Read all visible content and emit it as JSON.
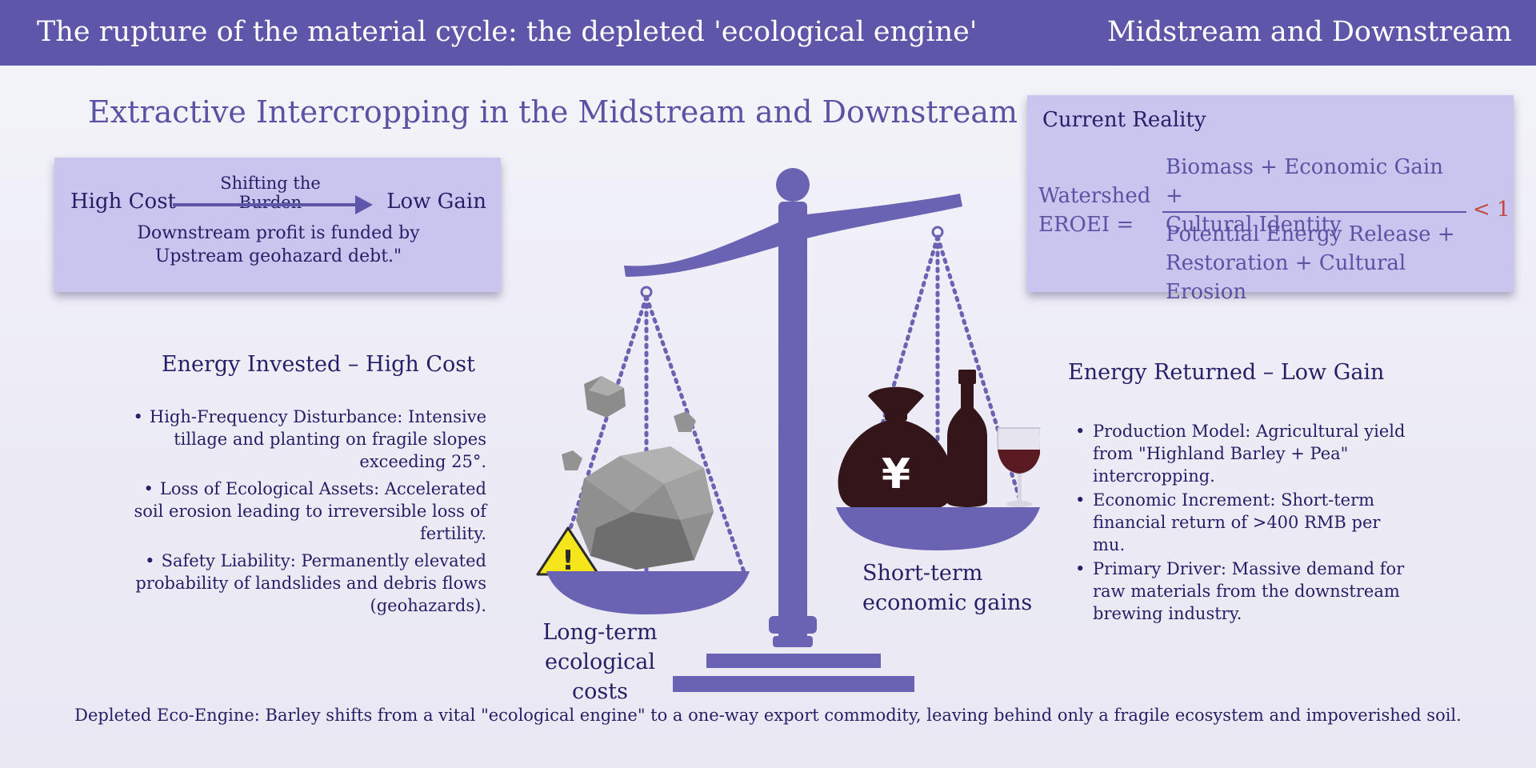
{
  "header": {
    "title": "The rupture of the material cycle: the depleted 'ecological engine'",
    "section": "Midstream and Downstream"
  },
  "main_title": "Extractive Intercropping in the Midstream and Downstream",
  "burden": {
    "high": "High Cost",
    "shift": "Shifting the Burden",
    "low": "Low Gain",
    "note_line1": "Downstream profit is funded by",
    "note_line2": "Upstream geohazard debt.\""
  },
  "eroei": {
    "heading": "Current Reality",
    "lhs_line1": "Watershed",
    "lhs_line2": "EROEI =",
    "numerator_line1": "Biomass + Economic Gain +",
    "numerator_line2": "Cultural Identity",
    "denominator_line1": "Potential Energy Release +",
    "denominator_line2": "Restoration + Cultural Erosion",
    "comparison": "< 1"
  },
  "invested": {
    "heading": "Energy Invested – High Cost",
    "items": [
      "High-Frequency Disturbance: Intensive tillage and planting on fragile slopes exceeding 25°.",
      "Loss of Ecological Assets: Accelerated soil erosion leading to irreversible loss of fertility.",
      "Safety Liability: Permanently elevated probability of landslides and debris flows (geohazards)."
    ]
  },
  "returned": {
    "heading": "Energy Returned – Low Gain",
    "items": [
      "Production Model: Agricultural yield from \"Highland Barley + Pea\" intercropping.",
      "Economic Increment: Short-term financial return of >400 RMB per mu.",
      "Primary Driver: Massive demand for raw materials from the downstream brewing industry."
    ]
  },
  "scale": {
    "left_caption_line1": "Long-term",
    "left_caption_line2": "ecological costs",
    "right_caption_line1": "Short-term",
    "right_caption_line2": "economic gains",
    "currency_symbol": "¥",
    "warning_symbol": "!",
    "colors": {
      "scale": "#6a63b3",
      "rock": "#8f8f8f",
      "bag": "#34161a",
      "warning": "#f5e51b"
    }
  },
  "footer": "Depleted Eco-Engine: Barley shifts from a vital \"ecological engine\" to a one-way export commodity, leaving behind only a fragile ecosystem and impoverished soil."
}
